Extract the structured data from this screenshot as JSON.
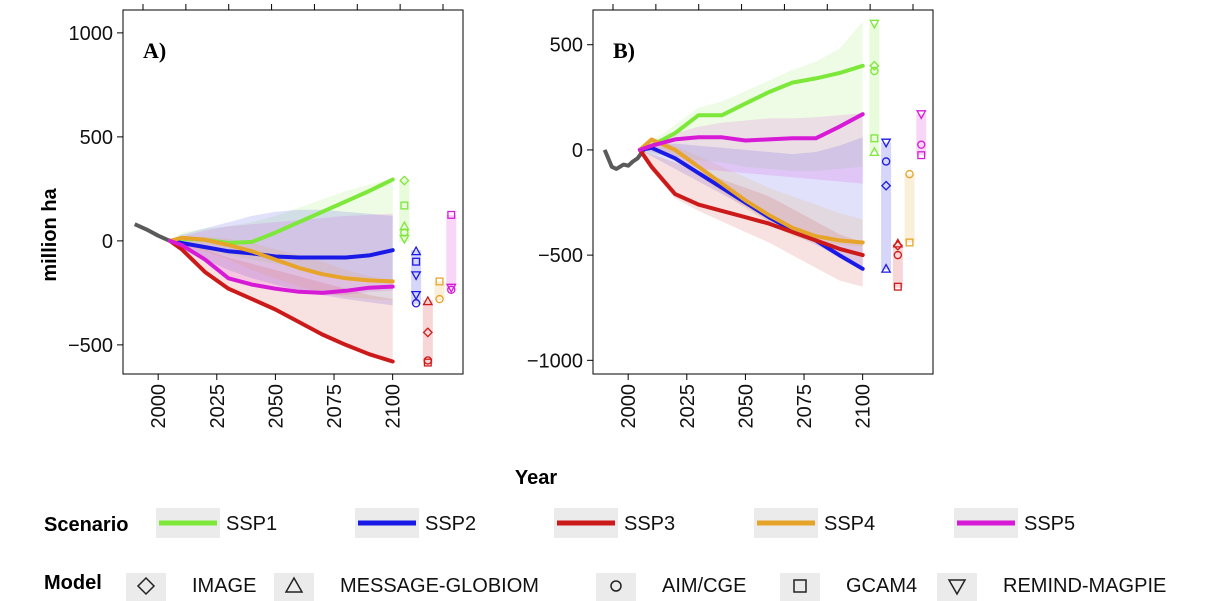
{
  "chart_data": {
    "type": "line",
    "ylabel": "million ha",
    "xlabel": "Year",
    "x_ticks": [
      "2000",
      "2025",
      "2050",
      "2075",
      "2100"
    ],
    "grid": false,
    "legend_placement": "bottom",
    "colors": {
      "SSP1": "#7de83a",
      "SSP2": "#1a1ae6",
      "SSP3": "#cc1a1a",
      "SSP4": "#e6a52a",
      "SSP5": "#d61ad6",
      "history": "#5a5a5a"
    },
    "panels": [
      {
        "label": "A)",
        "xlim": [
          1985,
          2130
        ],
        "ylim": [
          -640,
          1110
        ],
        "y_ticks": [
          -500,
          0,
          500,
          1000
        ],
        "y_tick_labels": [
          "−500",
          "0",
          "500",
          "1000"
        ],
        "history": {
          "x": [
            1990,
            1995,
            2000,
            2005
          ],
          "y": [
            80,
            55,
            25,
            0
          ]
        },
        "series": [
          {
            "name": "SSP1",
            "x": [
              2005,
              2010,
              2020,
              2030,
              2040,
              2050,
              2060,
              2070,
              2080,
              2090,
              2100
            ],
            "y": [
              0,
              10,
              5,
              -10,
              -5,
              40,
              90,
              140,
              190,
              240,
              295
            ],
            "band_upper": [
              0,
              40,
              60,
              70,
              90,
              120,
              160,
              200,
              240,
              270,
              300
            ],
            "band_lower": [
              0,
              -20,
              -40,
              -70,
              -90,
              -110,
              -130,
              -150,
              -170,
              -190,
              -200
            ]
          },
          {
            "name": "SSP2",
            "x": [
              2005,
              2010,
              2020,
              2030,
              2040,
              2050,
              2060,
              2070,
              2080,
              2090,
              2100
            ],
            "y": [
              0,
              -10,
              -30,
              -50,
              -60,
              -75,
              -80,
              -80,
              -80,
              -70,
              -45
            ],
            "band_upper": [
              0,
              30,
              60,
              90,
              120,
              140,
              150,
              150,
              140,
              130,
              120
            ],
            "band_lower": [
              0,
              -40,
              -90,
              -140,
              -180,
              -210,
              -240,
              -260,
              -280,
              -295,
              -310
            ]
          },
          {
            "name": "SSP3",
            "x": [
              2005,
              2010,
              2020,
              2030,
              2040,
              2050,
              2060,
              2070,
              2080,
              2090,
              2100
            ],
            "y": [
              0,
              -40,
              -150,
              -230,
              -280,
              -330,
              -390,
              -450,
              -500,
              -545,
              -580
            ],
            "band_upper": [
              0,
              -10,
              -40,
              -80,
              -110,
              -140,
              -170,
              -200,
              -230,
              -260,
              -280
            ],
            "band_lower": [
              0,
              -40,
              -150,
              -230,
              -280,
              -330,
              -390,
              -450,
              -500,
              -545,
              -590
            ]
          },
          {
            "name": "SSP4",
            "x": [
              2005,
              2010,
              2020,
              2030,
              2040,
              2050,
              2060,
              2070,
              2080,
              2090,
              2100
            ],
            "y": [
              0,
              15,
              5,
              -20,
              -50,
              -90,
              -130,
              -160,
              -180,
              -190,
              -195
            ],
            "band_upper": [
              0,
              20,
              20,
              10,
              -10,
              -40,
              -70,
              -100,
              -140,
              -170,
              -190
            ],
            "band_lower": [
              0,
              -20,
              -50,
              -90,
              -140,
              -180,
              -220,
              -250,
              -270,
              -280,
              -285
            ]
          },
          {
            "name": "SSP5",
            "x": [
              2005,
              2010,
              2020,
              2030,
              2040,
              2050,
              2060,
              2070,
              2080,
              2090,
              2100
            ],
            "y": [
              0,
              -20,
              -90,
              -180,
              -210,
              -230,
              -245,
              -250,
              -240,
              -225,
              -220
            ],
            "band_upper": [
              0,
              20,
              50,
              70,
              80,
              90,
              100,
              110,
              120,
              125,
              130
            ],
            "band_lower": [
              0,
              -30,
              -100,
              -180,
              -210,
              -230,
              -250,
              -260,
              -260,
              -245,
              -240
            ]
          }
        ],
        "model_ranges": [
          {
            "scenario": "SSP1",
            "min": -5,
            "max": 295,
            "markers": [
              {
                "model": "IMAGE",
                "value": 290
              },
              {
                "model": "GCAM4",
                "value": 170
              },
              {
                "model": "MESSAGE-GLOBIOM",
                "value": 70
              },
              {
                "model": "AIM/CGE",
                "value": 40
              },
              {
                "model": "REMIND-MAGPIE",
                "value": 10
              }
            ]
          },
          {
            "scenario": "SSP2",
            "min": -305,
            "max": -45,
            "markers": [
              {
                "model": "MESSAGE-GLOBIOM",
                "value": -50
              },
              {
                "model": "GCAM4",
                "value": -100
              },
              {
                "model": "REMIND-MAGPIE",
                "value": -165
              },
              {
                "model": "REMIND-MAGPIE",
                "value": -260
              },
              {
                "model": "AIM/CGE",
                "value": -300
              }
            ]
          },
          {
            "scenario": "SSP3",
            "min": -590,
            "max": -285,
            "markers": [
              {
                "model": "MESSAGE-GLOBIOM",
                "value": -290
              },
              {
                "model": "IMAGE",
                "value": -440
              },
              {
                "model": "AIM/CGE",
                "value": -575
              },
              {
                "model": "GCAM4",
                "value": -585
              }
            ]
          },
          {
            "scenario": "SSP4",
            "min": -285,
            "max": -195,
            "markers": [
              {
                "model": "GCAM4",
                "value": -195
              },
              {
                "model": "AIM/CGE",
                "value": -280
              }
            ]
          },
          {
            "scenario": "SSP5",
            "min": -235,
            "max": 125,
            "markers": [
              {
                "model": "GCAM4",
                "value": 125
              },
              {
                "model": "REMIND-MAGPIE",
                "value": -225
              },
              {
                "model": "AIM/CGE",
                "value": -235
              }
            ]
          }
        ]
      },
      {
        "label": "B)",
        "xlim": [
          1985,
          2130
        ],
        "ylim": [
          -1065,
          665
        ],
        "y_ticks": [
          -1000,
          -500,
          0,
          500
        ],
        "y_tick_labels": [
          "−1000",
          "−500",
          "0",
          "500"
        ],
        "history": {
          "x": [
            1990,
            1993,
            1995,
            1998,
            2000,
            2002,
            2004,
            2006,
            2008
          ],
          "y": [
            0,
            -80,
            -90,
            -70,
            -75,
            -55,
            -40,
            -10,
            20
          ]
        },
        "series": [
          {
            "name": "SSP1",
            "x": [
              2005,
              2010,
              2020,
              2030,
              2040,
              2050,
              2060,
              2070,
              2080,
              2090,
              2100
            ],
            "y": [
              0,
              20,
              80,
              165,
              165,
              220,
              275,
              320,
              340,
              365,
              400
            ],
            "band_upper": [
              0,
              40,
              120,
              200,
              230,
              280,
              330,
              380,
              420,
              480,
              610
            ],
            "band_lower": [
              0,
              -20,
              -30,
              -50,
              -60,
              -80,
              -90,
              -100,
              -100,
              -90,
              -80
            ]
          },
          {
            "name": "SSP2",
            "x": [
              2005,
              2010,
              2020,
              2030,
              2040,
              2050,
              2060,
              2070,
              2080,
              2090,
              2100
            ],
            "y": [
              0,
              10,
              -40,
              -110,
              -180,
              -250,
              -320,
              -380,
              -430,
              -500,
              -565
            ],
            "band_upper": [
              0,
              30,
              30,
              20,
              10,
              0,
              -10,
              -20,
              -10,
              20,
              60
            ],
            "band_lower": [
              0,
              -30,
              -90,
              -150,
              -210,
              -270,
              -340,
              -400,
              -450,
              -510,
              -570
            ]
          },
          {
            "name": "SSP3",
            "x": [
              2005,
              2010,
              2020,
              2030,
              2040,
              2050,
              2060,
              2070,
              2080,
              2090,
              2100
            ],
            "y": [
              0,
              -80,
              -210,
              -260,
              -290,
              -320,
              -350,
              -390,
              -430,
              -470,
              -500
            ],
            "band_upper": [
              0,
              -20,
              -60,
              -100,
              -140,
              -180,
              -220,
              -280,
              -340,
              -400,
              -440
            ],
            "band_lower": [
              0,
              -100,
              -230,
              -290,
              -340,
              -390,
              -440,
              -500,
              -560,
              -620,
              -650
            ]
          },
          {
            "name": "SSP4",
            "x": [
              2005,
              2010,
              2020,
              2030,
              2040,
              2050,
              2060,
              2070,
              2080,
              2090,
              2100
            ],
            "y": [
              0,
              50,
              0,
              -80,
              -160,
              -240,
              -310,
              -370,
              -410,
              -430,
              -440
            ],
            "band_upper": [
              0,
              50,
              20,
              -30,
              -80,
              -130,
              -180,
              -220,
              -260,
              -300,
              -330
            ],
            "band_lower": [
              0,
              20,
              -50,
              -120,
              -200,
              -280,
              -350,
              -410,
              -440,
              -450,
              -460
            ]
          },
          {
            "name": "SSP5",
            "x": [
              2005,
              2010,
              2020,
              2030,
              2040,
              2050,
              2060,
              2070,
              2080,
              2090,
              2100
            ],
            "y": [
              0,
              20,
              50,
              60,
              60,
              45,
              50,
              55,
              55,
              110,
              170
            ],
            "band_upper": [
              0,
              40,
              80,
              110,
              130,
              140,
              150,
              150,
              155,
              165,
              175
            ],
            "band_lower": [
              0,
              -10,
              -40,
              -90,
              -100,
              -110,
              -120,
              -130,
              -140,
              -150,
              -160
            ]
          }
        ],
        "model_ranges": [
          {
            "scenario": "SSP1",
            "min": -10,
            "max": 600,
            "markers": [
              {
                "model": "REMIND-MAGPIE",
                "value": 600
              },
              {
                "model": "IMAGE",
                "value": 400
              },
              {
                "model": "AIM/CGE",
                "value": 375
              },
              {
                "model": "GCAM4",
                "value": 55
              },
              {
                "model": "MESSAGE-GLOBIOM",
                "value": -10
              }
            ]
          },
          {
            "scenario": "SSP2",
            "min": -570,
            "max": 35,
            "markers": [
              {
                "model": "REMIND-MAGPIE",
                "value": 35
              },
              {
                "model": "AIM/CGE",
                "value": -55
              },
              {
                "model": "IMAGE",
                "value": -170
              },
              {
                "model": "MESSAGE-GLOBIOM",
                "value": -565
              }
            ]
          },
          {
            "scenario": "SSP3",
            "min": -655,
            "max": -445,
            "markers": [
              {
                "model": "MESSAGE-GLOBIOM",
                "value": -445
              },
              {
                "model": "IMAGE",
                "value": -455
              },
              {
                "model": "AIM/CGE",
                "value": -500
              },
              {
                "model": "GCAM4",
                "value": -650
              }
            ]
          },
          {
            "scenario": "SSP4",
            "min": -440,
            "max": -115,
            "markers": [
              {
                "model": "AIM/CGE",
                "value": -115
              },
              {
                "model": "GCAM4",
                "value": -440
              }
            ]
          },
          {
            "scenario": "SSP5",
            "min": -25,
            "max": 170,
            "markers": [
              {
                "model": "REMIND-MAGPIE",
                "value": 170
              },
              {
                "model": "AIM/CGE",
                "value": 25
              },
              {
                "model": "GCAM4",
                "value": -25
              }
            ]
          }
        ]
      }
    ]
  },
  "legend": {
    "scenario_title": "Scenario",
    "scenarios": [
      "SSP1",
      "SSP2",
      "SSP3",
      "SSP4",
      "SSP5"
    ],
    "model_title": "Model",
    "models": [
      {
        "name": "IMAGE",
        "icon": "diamond-icon"
      },
      {
        "name": "MESSAGE-GLOBIOM",
        "icon": "triangle-up-icon"
      },
      {
        "name": "AIM/CGE",
        "icon": "circle-icon"
      },
      {
        "name": "GCAM4",
        "icon": "square-icon"
      },
      {
        "name": "REMIND-MAGPIE",
        "icon": "triangle-down-icon"
      }
    ]
  }
}
